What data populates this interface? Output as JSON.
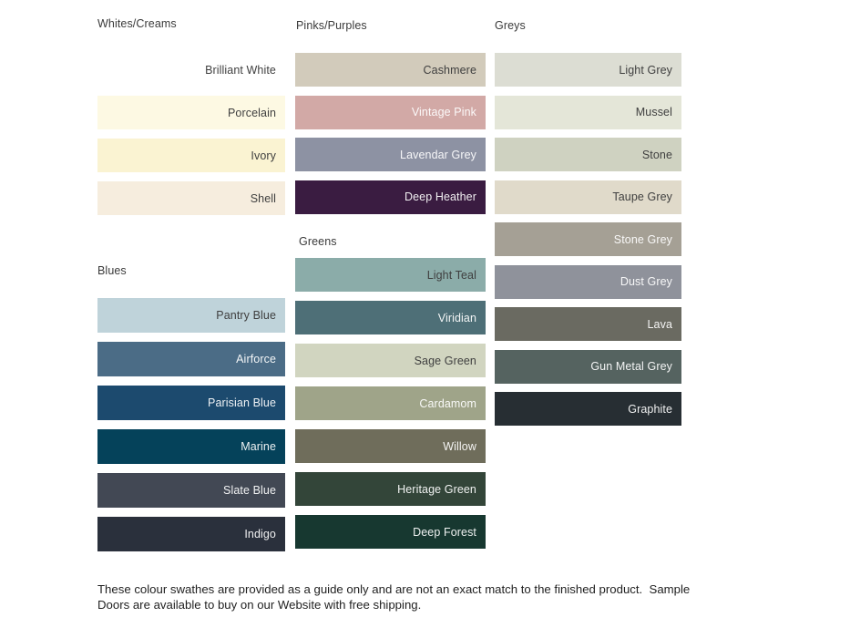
{
  "groups": [
    {
      "id": "whites_creams",
      "title": "Whites/Creams",
      "swatches": [
        {
          "name": "Brilliant White",
          "color": "#FFFFFF",
          "label_style": "dark"
        },
        {
          "name": "Porcelain",
          "color": "#FDF9E3",
          "label_style": "dark"
        },
        {
          "name": "Ivory",
          "color": "#FAF3D2",
          "label_style": "dark"
        },
        {
          "name": "Shell",
          "color": "#F6EDDE",
          "label_style": "dark"
        }
      ]
    },
    {
      "id": "blues",
      "title": "Blues",
      "swatches": [
        {
          "name": "Pantry Blue",
          "color": "#BFD3DA",
          "label_style": "dark"
        },
        {
          "name": "Airforce",
          "color": "#4B6C86",
          "label_style": "light"
        },
        {
          "name": "Parisian Blue",
          "color": "#1C4A6E",
          "label_style": "light"
        },
        {
          "name": "Marine",
          "color": "#05425A",
          "label_style": "light"
        },
        {
          "name": "Slate Blue",
          "color": "#424854",
          "label_style": "light"
        },
        {
          "name": "Indigo",
          "color": "#2A303C",
          "label_style": "light"
        }
      ]
    },
    {
      "id": "pinks_purples",
      "title": "Pinks/Purples",
      "swatches": [
        {
          "name": "Cashmere",
          "color": "#D2CBBB",
          "label_style": "dark"
        },
        {
          "name": "Vintage Pink",
          "color": "#D2A9A6",
          "label_style": "light"
        },
        {
          "name": "Lavendar Grey",
          "color": "#8D92A3",
          "label_style": "light"
        },
        {
          "name": "Deep Heather",
          "color": "#3A1C41",
          "label_style": "light"
        }
      ]
    },
    {
      "id": "greens",
      "title": "Greens",
      "swatches": [
        {
          "name": "Light Teal",
          "color": "#8BACA9",
          "label_style": "dark"
        },
        {
          "name": "Viridian",
          "color": "#4E6F77",
          "label_style": "light"
        },
        {
          "name": "Sage Green",
          "color": "#D1D5C0",
          "label_style": "dark"
        },
        {
          "name": "Cardamom",
          "color": "#9FA489",
          "label_style": "light"
        },
        {
          "name": "Willow",
          "color": "#6F6D5B",
          "label_style": "light"
        },
        {
          "name": "Heritage Green",
          "color": "#334539",
          "label_style": "light"
        },
        {
          "name": "Deep Forest",
          "color": "#173830",
          "label_style": "light"
        }
      ]
    },
    {
      "id": "greys",
      "title": "Greys",
      "swatches": [
        {
          "name": "Light Grey",
          "color": "#DCDDD3",
          "label_style": "dark"
        },
        {
          "name": "Mussel",
          "color": "#E4E6D8",
          "label_style": "dark"
        },
        {
          "name": "Stone",
          "color": "#CFD2C1",
          "label_style": "dark"
        },
        {
          "name": "Taupe Grey",
          "color": "#E0DACA",
          "label_style": "dark"
        },
        {
          "name": "Stone Grey",
          "color": "#A5A095",
          "label_style": "light"
        },
        {
          "name": "Dust Grey",
          "color": "#8F929B",
          "label_style": "light"
        },
        {
          "name": "Lava",
          "color": "#6A6A61",
          "label_style": "light"
        },
        {
          "name": "Gun Metal Grey",
          "color": "#556360",
          "label_style": "light"
        },
        {
          "name": "Graphite",
          "color": "#272E33",
          "label_style": "light"
        }
      ]
    }
  ],
  "footer": {
    "text": "These colour swathes are provided as a guide only and are not an exact match to the finished product.  Sample Doors are available to buy on our Website with free shipping."
  }
}
